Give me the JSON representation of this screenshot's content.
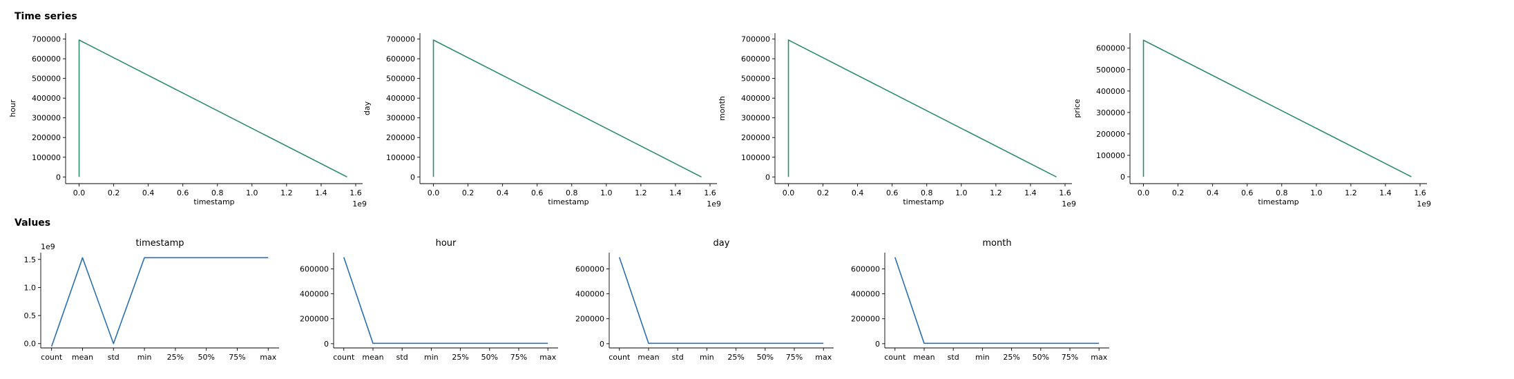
{
  "sections": {
    "time_series_title": "Time series",
    "values_title": "Values"
  },
  "chart_data": [
    {
      "type": "line",
      "group": "time-series",
      "title": "",
      "xlabel": "timestamp",
      "ylabel": "hour",
      "x_offset_label": "1e9",
      "y_offset_label": "",
      "xlim": [
        -0.078,
        1.64
      ],
      "ylim": [
        -34000,
        730000
      ],
      "x_scale": 1000000000.0,
      "xticks": [
        0.0,
        0.2,
        0.4,
        0.6,
        0.8,
        1.0,
        1.2,
        1.4,
        1.6
      ],
      "xtick_labels": [
        "0.0",
        "0.2",
        "0.4",
        "0.6",
        "0.8",
        "1.0",
        "1.2",
        "1.4",
        "1.6"
      ],
      "yticks": [
        0,
        100000,
        200000,
        300000,
        400000,
        500000,
        600000,
        700000
      ],
      "ytick_labels": [
        "0",
        "100000",
        "200000",
        "300000",
        "400000",
        "500000",
        "600000",
        "700000"
      ],
      "color": "#2e8b6f",
      "series": [
        {
          "x": [
            0.0,
            0.0,
            1.55
          ],
          "y": [
            0,
            695000,
            0
          ]
        }
      ]
    },
    {
      "type": "line",
      "group": "time-series",
      "title": "",
      "xlabel": "timestamp",
      "ylabel": "day",
      "x_offset_label": "1e9",
      "y_offset_label": "",
      "xlim": [
        -0.078,
        1.64
      ],
      "ylim": [
        -34000,
        730000
      ],
      "x_scale": 1000000000.0,
      "xticks": [
        0.0,
        0.2,
        0.4,
        0.6,
        0.8,
        1.0,
        1.2,
        1.4,
        1.6
      ],
      "xtick_labels": [
        "0.0",
        "0.2",
        "0.4",
        "0.6",
        "0.8",
        "1.0",
        "1.2",
        "1.4",
        "1.6"
      ],
      "yticks": [
        0,
        100000,
        200000,
        300000,
        400000,
        500000,
        600000,
        700000
      ],
      "ytick_labels": [
        "0",
        "100000",
        "200000",
        "300000",
        "400000",
        "500000",
        "600000",
        "700000"
      ],
      "color": "#2e8b6f",
      "series": [
        {
          "x": [
            0.0,
            0.0,
            1.55
          ],
          "y": [
            0,
            695000,
            0
          ]
        }
      ]
    },
    {
      "type": "line",
      "group": "time-series",
      "title": "",
      "xlabel": "timestamp",
      "ylabel": "month",
      "x_offset_label": "1e9",
      "y_offset_label": "",
      "xlim": [
        -0.078,
        1.64
      ],
      "ylim": [
        -34000,
        730000
      ],
      "x_scale": 1000000000.0,
      "xticks": [
        0.0,
        0.2,
        0.4,
        0.6,
        0.8,
        1.0,
        1.2,
        1.4,
        1.6
      ],
      "xtick_labels": [
        "0.0",
        "0.2",
        "0.4",
        "0.6",
        "0.8",
        "1.0",
        "1.2",
        "1.4",
        "1.6"
      ],
      "yticks": [
        0,
        100000,
        200000,
        300000,
        400000,
        500000,
        600000,
        700000
      ],
      "ytick_labels": [
        "0",
        "100000",
        "200000",
        "300000",
        "400000",
        "500000",
        "600000",
        "700000"
      ],
      "color": "#2e8b6f",
      "series": [
        {
          "x": [
            0.0,
            0.0,
            1.55
          ],
          "y": [
            0,
            695000,
            0
          ]
        }
      ]
    },
    {
      "type": "line",
      "group": "time-series",
      "title": "",
      "xlabel": "timestamp",
      "ylabel": "price",
      "x_offset_label": "1e9",
      "y_offset_label": "",
      "xlim": [
        -0.078,
        1.64
      ],
      "ylim": [
        -32000,
        670000
      ],
      "x_scale": 1000000000.0,
      "xticks": [
        0.0,
        0.2,
        0.4,
        0.6,
        0.8,
        1.0,
        1.2,
        1.4,
        1.6
      ],
      "xtick_labels": [
        "0.0",
        "0.2",
        "0.4",
        "0.6",
        "0.8",
        "1.0",
        "1.2",
        "1.4",
        "1.6"
      ],
      "yticks": [
        0,
        100000,
        200000,
        300000,
        400000,
        500000,
        600000
      ],
      "ytick_labels": [
        "0",
        "100000",
        "200000",
        "300000",
        "400000",
        "500000",
        "600000"
      ],
      "color": "#2e8b6f",
      "series": [
        {
          "x": [
            0.0,
            0.0,
            1.55
          ],
          "y": [
            0,
            637000,
            0
          ]
        }
      ]
    },
    {
      "type": "line",
      "group": "values",
      "title": "timestamp",
      "xlabel": "",
      "ylabel": "",
      "x_offset_label": "",
      "y_offset_label": "1e9",
      "categories": [
        "count",
        "mean",
        "std",
        "min",
        "25%",
        "50%",
        "75%",
        "max"
      ],
      "xlim": [
        -0.35,
        7.35
      ],
      "ylim": [
        -0.077,
        1.62
      ],
      "y_scale": 1000000000.0,
      "yticks": [
        0.0,
        0.5,
        1.0,
        1.5
      ],
      "ytick_labels": [
        "0.0",
        "0.5",
        "1.0",
        "1.5"
      ],
      "color": "#2a6fb0",
      "series": [
        {
          "values": [
            -0.05,
            1.53,
            0.0,
            1.53,
            1.53,
            1.53,
            1.53,
            1.53
          ]
        }
      ]
    },
    {
      "type": "line",
      "group": "values",
      "title": "hour",
      "xlabel": "",
      "ylabel": "",
      "x_offset_label": "",
      "y_offset_label": "",
      "categories": [
        "count",
        "mean",
        "std",
        "min",
        "25%",
        "50%",
        "75%",
        "max"
      ],
      "xlim": [
        -0.35,
        7.35
      ],
      "ylim": [
        -34000,
        730000
      ],
      "yticks": [
        0,
        200000,
        400000,
        600000
      ],
      "ytick_labels": [
        "0",
        "200000",
        "400000",
        "600000"
      ],
      "color": "#2a6fb0",
      "series": [
        {
          "values": [
            693000,
            3000,
            3000,
            3000,
            3000,
            3000,
            3000,
            3000
          ]
        }
      ]
    },
    {
      "type": "line",
      "group": "values",
      "title": "day",
      "xlabel": "",
      "ylabel": "",
      "x_offset_label": "",
      "y_offset_label": "",
      "categories": [
        "count",
        "mean",
        "std",
        "min",
        "25%",
        "50%",
        "75%",
        "max"
      ],
      "xlim": [
        -0.35,
        7.35
      ],
      "ylim": [
        -34000,
        730000
      ],
      "yticks": [
        0,
        200000,
        400000,
        600000
      ],
      "ytick_labels": [
        "0",
        "200000",
        "400000",
        "600000"
      ],
      "color": "#2a6fb0",
      "series": [
        {
          "values": [
            693000,
            3000,
            3000,
            3000,
            3000,
            3000,
            3000,
            3000
          ]
        }
      ]
    },
    {
      "type": "line",
      "group": "values",
      "title": "month",
      "xlabel": "",
      "ylabel": "",
      "x_offset_label": "",
      "y_offset_label": "",
      "categories": [
        "count",
        "mean",
        "std",
        "min",
        "25%",
        "50%",
        "75%",
        "max"
      ],
      "xlim": [
        -0.35,
        7.35
      ],
      "ylim": [
        -34000,
        730000
      ],
      "yticks": [
        0,
        200000,
        400000,
        600000
      ],
      "ytick_labels": [
        "0",
        "200000",
        "400000",
        "600000"
      ],
      "color": "#2a6fb0",
      "series": [
        {
          "values": [
            693000,
            3000,
            3000,
            3000,
            3000,
            3000,
            3000,
            3000
          ]
        }
      ]
    }
  ]
}
